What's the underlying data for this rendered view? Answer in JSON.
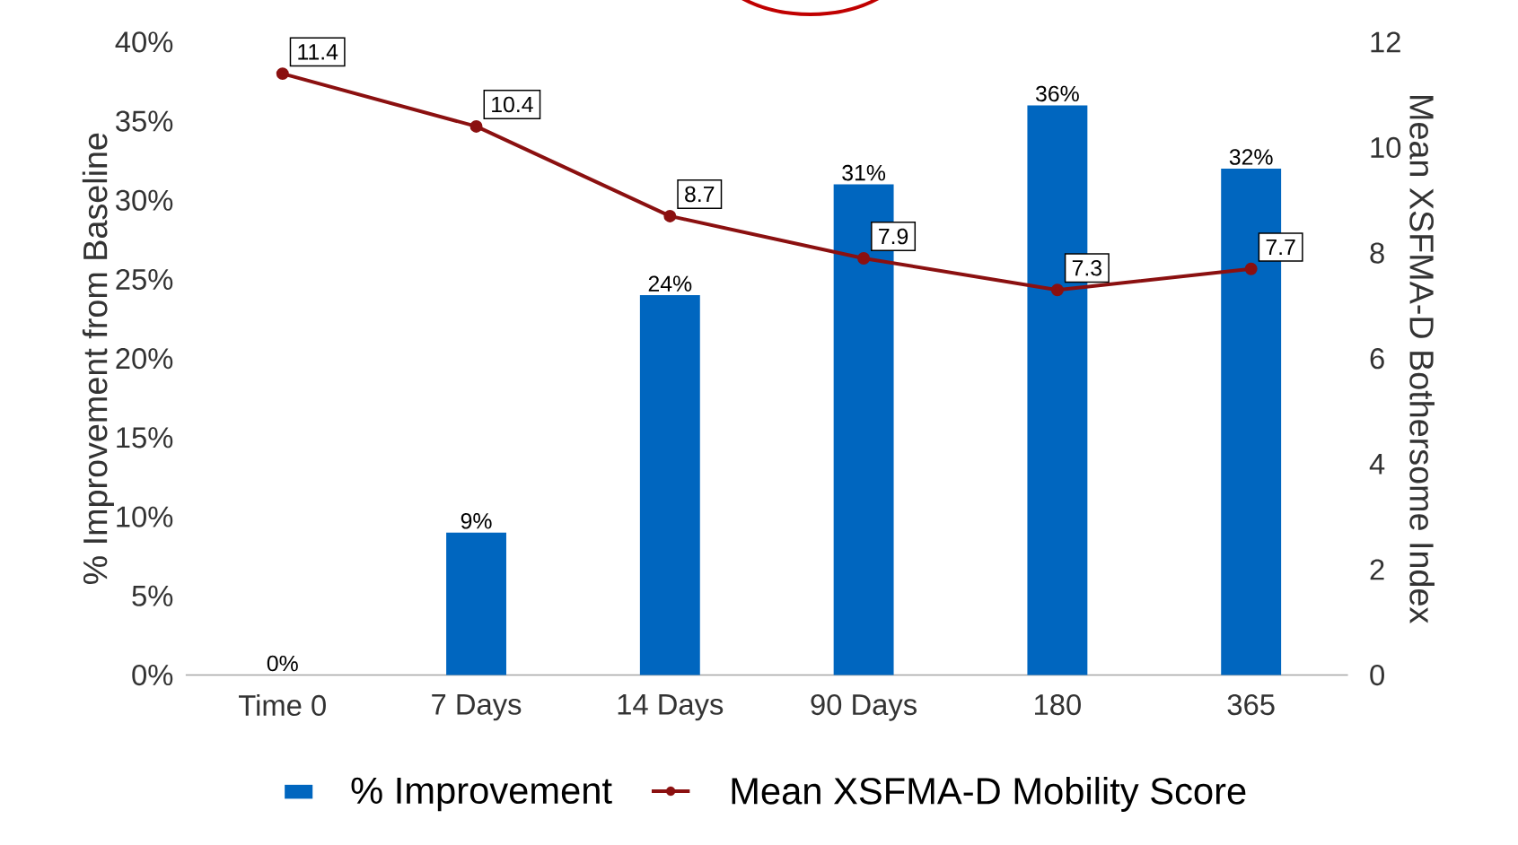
{
  "chart_data": {
    "type": "bar",
    "categories": [
      "Time 0",
      "7 Days",
      "14 Days",
      "90 Days",
      "180",
      "365"
    ],
    "series": [
      {
        "name": "% Improvement",
        "color": "#0066bf",
        "values": [
          0,
          9,
          24,
          31,
          36,
          32
        ],
        "value_labels": [
          "0%",
          "9%",
          "24%",
          "31%",
          "36%",
          "32%"
        ]
      },
      {
        "name": "Mean XSFMA-D Mobility Score",
        "type": "line",
        "axis": "y2",
        "color": "#8b1010",
        "values": [
          11.4,
          10.4,
          8.7,
          7.9,
          7.3,
          7.7
        ],
        "value_labels": [
          "11.4",
          "10.4",
          "8.7",
          "7.9",
          "7.3",
          "7.7"
        ]
      }
    ],
    "ylabel": "% Improvement from Baseline",
    "y2label": "Mean XSFMA-D Bothersome Index",
    "ylim": [
      0,
      40
    ],
    "yticks": [
      {
        "value": 0,
        "label": "0%"
      },
      {
        "value": 5,
        "label": "5%"
      },
      {
        "value": 10,
        "label": "10%"
      },
      {
        "value": 15,
        "label": "15%"
      },
      {
        "value": 20,
        "label": "20%"
      },
      {
        "value": 25,
        "label": "25%"
      },
      {
        "value": 30,
        "label": "30%"
      },
      {
        "value": 35,
        "label": "35%"
      },
      {
        "value": 40,
        "label": "40%"
      }
    ],
    "y2lim": [
      0,
      12
    ],
    "y2ticks": [
      0,
      2,
      4,
      6,
      8,
      10,
      12
    ],
    "marker": "circle",
    "legend": "bottom"
  }
}
